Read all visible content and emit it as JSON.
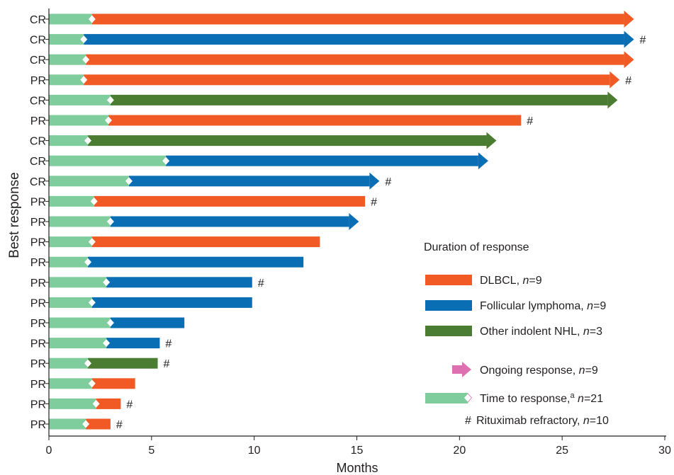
{
  "chart_data": {
    "type": "bar",
    "title": "",
    "xlabel": "Months",
    "ylabel": "Best response",
    "xlim": [
      0,
      30
    ],
    "xticks": [
      0,
      5,
      10,
      15,
      20,
      25,
      30
    ],
    "grid": false,
    "legend_placement": "bottom-right",
    "legend_title": "Duration of response",
    "colors": {
      "dlbcl": "#f15a24",
      "follicular": "#0a6eb4",
      "other": "#4a7d32",
      "ttr": "#7fcc9c",
      "ongoing": "#de6fb1",
      "diamond": "#ffffff",
      "text": "#231f20"
    },
    "rows": [
      {
        "response": "CR",
        "histology": "dlbcl",
        "time_to_response": 2.1,
        "end": 28.5,
        "ongoing": true,
        "rituximab_refractory": false
      },
      {
        "response": "CR",
        "histology": "follicular",
        "time_to_response": 1.7,
        "end": 28.5,
        "ongoing": true,
        "rituximab_refractory": true
      },
      {
        "response": "CR",
        "histology": "dlbcl",
        "time_to_response": 1.8,
        "end": 28.5,
        "ongoing": true,
        "rituximab_refractory": false
      },
      {
        "response": "PR",
        "histology": "dlbcl",
        "time_to_response": 1.7,
        "end": 27.8,
        "ongoing": true,
        "rituximab_refractory": true
      },
      {
        "response": "CR",
        "histology": "other",
        "time_to_response": 3.0,
        "end": 27.7,
        "ongoing": true,
        "rituximab_refractory": false
      },
      {
        "response": "PR",
        "histology": "dlbcl",
        "time_to_response": 2.9,
        "end": 23.0,
        "ongoing": false,
        "rituximab_refractory": true
      },
      {
        "response": "CR",
        "histology": "other",
        "time_to_response": 1.9,
        "end": 21.8,
        "ongoing": true,
        "rituximab_refractory": false
      },
      {
        "response": "CR",
        "histology": "follicular",
        "time_to_response": 5.7,
        "end": 21.4,
        "ongoing": true,
        "rituximab_refractory": false
      },
      {
        "response": "CR",
        "histology": "follicular",
        "time_to_response": 3.9,
        "end": 16.1,
        "ongoing": true,
        "rituximab_refractory": true
      },
      {
        "response": "PR",
        "histology": "dlbcl",
        "time_to_response": 2.2,
        "end": 15.4,
        "ongoing": false,
        "rituximab_refractory": true
      },
      {
        "response": "PR",
        "histology": "follicular",
        "time_to_response": 3.0,
        "end": 15.1,
        "ongoing": true,
        "rituximab_refractory": false
      },
      {
        "response": "PR",
        "histology": "dlbcl",
        "time_to_response": 2.1,
        "end": 13.2,
        "ongoing": false,
        "rituximab_refractory": false
      },
      {
        "response": "PR",
        "histology": "follicular",
        "time_to_response": 1.9,
        "end": 12.4,
        "ongoing": false,
        "rituximab_refractory": false
      },
      {
        "response": "PR",
        "histology": "follicular",
        "time_to_response": 2.8,
        "end": 9.9,
        "ongoing": false,
        "rituximab_refractory": true
      },
      {
        "response": "PR",
        "histology": "follicular",
        "time_to_response": 2.1,
        "end": 9.9,
        "ongoing": false,
        "rituximab_refractory": false
      },
      {
        "response": "PR",
        "histology": "follicular",
        "time_to_response": 3.0,
        "end": 6.6,
        "ongoing": false,
        "rituximab_refractory": false
      },
      {
        "response": "PR",
        "histology": "follicular",
        "time_to_response": 2.8,
        "end": 5.4,
        "ongoing": false,
        "rituximab_refractory": true
      },
      {
        "response": "PR",
        "histology": "other",
        "time_to_response": 1.9,
        "end": 5.3,
        "ongoing": false,
        "rituximab_refractory": true
      },
      {
        "response": "PR",
        "histology": "dlbcl",
        "time_to_response": 2.1,
        "end": 4.2,
        "ongoing": false,
        "rituximab_refractory": false
      },
      {
        "response": "PR",
        "histology": "dlbcl",
        "time_to_response": 2.3,
        "end": 3.5,
        "ongoing": false,
        "rituximab_refractory": true
      },
      {
        "response": "PR",
        "histology": "dlbcl",
        "time_to_response": 1.8,
        "end": 3.0,
        "ongoing": false,
        "rituximab_refractory": true
      }
    ],
    "refractory_marker": "#",
    "legend": [
      {
        "key": "dlbcl",
        "label": "DLBCL, ",
        "n": "n",
        "eq": "=9"
      },
      {
        "key": "follicular",
        "label": "Follicular lymphoma, ",
        "n": "n",
        "eq": "=9"
      },
      {
        "key": "other",
        "label": "Other indolent NHL, ",
        "n": "n",
        "eq": "=3"
      },
      {
        "key": "ongoing",
        "label": "Ongoing response, ",
        "n": "n",
        "eq": "=9"
      },
      {
        "key": "ttr",
        "label": "Time to response,",
        "sup": "a",
        "n": "n",
        "eq": "=21"
      },
      {
        "key": "refractory",
        "symbol": "#",
        "label": "Rituximab refractory, ",
        "n": "n",
        "eq": "=10"
      }
    ]
  }
}
